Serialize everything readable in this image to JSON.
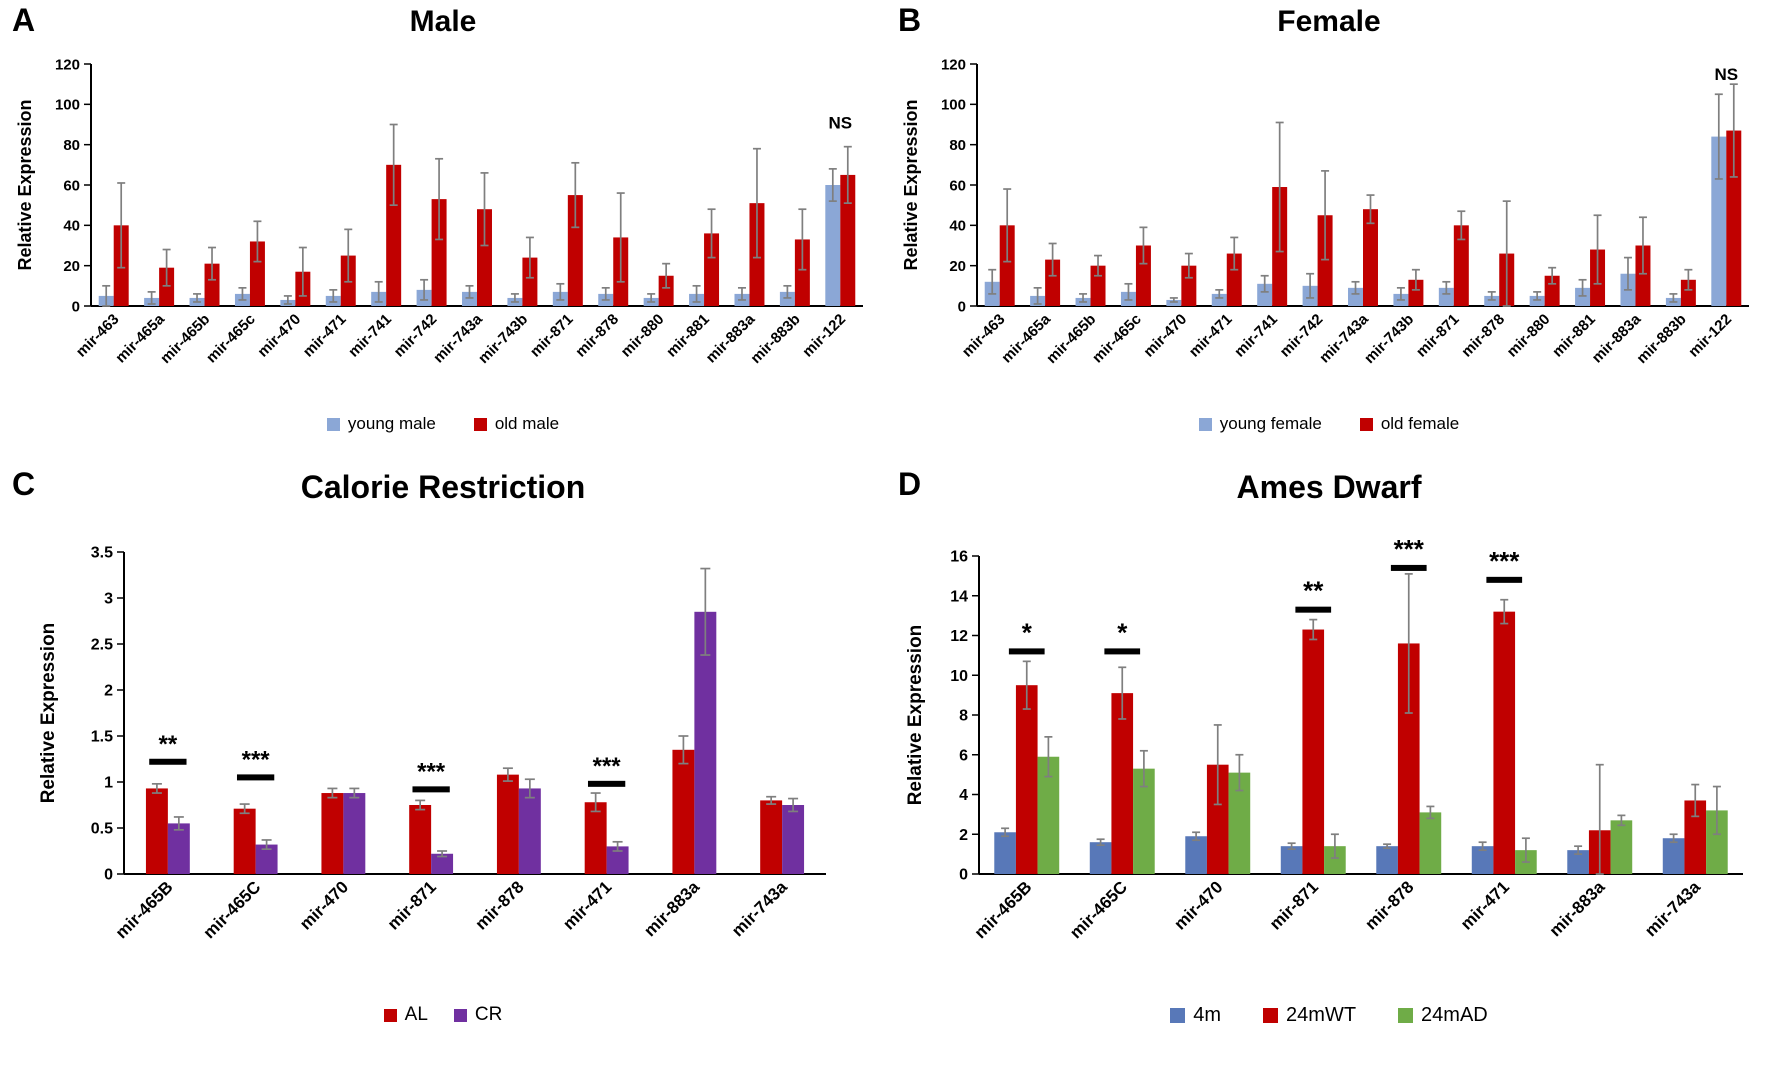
{
  "colors": {
    "error_bar": "#7F7F7F",
    "axis": "#000000",
    "annotation": "#000000",
    "young_blue": "#8BA7D6",
    "old_red": "#C00000",
    "cr_purple": "#7030A0",
    "fourm_blue": "#5878B8",
    "ad_green": "#6FAC47"
  },
  "chart_data": [
    {
      "type": "bar",
      "letter": "A",
      "title": "Male",
      "ylabel": "Relative Expression",
      "ylim": [
        0,
        120
      ],
      "yticks": [
        0,
        20,
        40,
        60,
        80,
        100,
        120
      ],
      "legend_position": "bottom",
      "grid": false,
      "categories": [
        "mir-463",
        "mir-465a",
        "mir-465b",
        "mir-465c",
        "mir-470",
        "mir-471",
        "mir-741",
        "mir-742",
        "mir-743a",
        "mir-743b",
        "mir-871",
        "mir-878",
        "mir-880",
        "mir-881",
        "mir-883a",
        "mir-883b",
        "mir-122"
      ],
      "series": [
        {
          "name": "young male",
          "color": "#8BA7D6",
          "values": [
            5,
            4,
            4,
            6,
            3,
            5,
            7,
            8,
            7,
            4,
            7,
            6,
            4,
            6,
            6,
            7,
            60
          ],
          "errors": [
            5,
            3,
            2,
            3,
            2,
            3,
            5,
            5,
            3,
            2,
            4,
            3,
            2,
            4,
            3,
            3,
            8
          ]
        },
        {
          "name": "old male",
          "color": "#C00000",
          "values": [
            40,
            19,
            21,
            32,
            17,
            25,
            70,
            53,
            48,
            24,
            55,
            34,
            15,
            36,
            51,
            33,
            65
          ],
          "errors": [
            21,
            9,
            8,
            10,
            12,
            13,
            20,
            20,
            18,
            10,
            16,
            22,
            6,
            12,
            27,
            15,
            14
          ]
        }
      ],
      "annotations": [
        {
          "category": "mir-122",
          "text": "NS",
          "y": 88,
          "bracket": false
        }
      ]
    },
    {
      "type": "bar",
      "letter": "B",
      "title": "Female",
      "ylabel": "Relative Expression",
      "ylim": [
        0,
        120
      ],
      "yticks": [
        0,
        20,
        40,
        60,
        80,
        100,
        120
      ],
      "legend_position": "bottom",
      "grid": false,
      "categories": [
        "mir-463",
        "mir-465a",
        "mir-465b",
        "mir-465c",
        "mir-470",
        "mir-471",
        "mir-741",
        "mir-742",
        "mir-743a",
        "mir-743b",
        "mir-871",
        "mir-878",
        "mir-880",
        "mir-881",
        "mir-883a",
        "mir-883b",
        "mir-122"
      ],
      "series": [
        {
          "name": "young female",
          "color": "#8BA7D6",
          "values": [
            12,
            5,
            4,
            7,
            3,
            6,
            11,
            10,
            9,
            6,
            9,
            5,
            5,
            9,
            16,
            4,
            84
          ],
          "errors": [
            6,
            4,
            2,
            4,
            1,
            2,
            4,
            6,
            3,
            3,
            3,
            2,
            2,
            4,
            8,
            2,
            21
          ]
        },
        {
          "name": "old female",
          "color": "#C00000",
          "values": [
            40,
            23,
            20,
            30,
            20,
            26,
            59,
            45,
            48,
            13,
            40,
            26,
            15,
            28,
            30,
            13,
            87
          ],
          "errors": [
            18,
            8,
            5,
            9,
            6,
            8,
            32,
            22,
            7,
            5,
            7,
            26,
            4,
            17,
            14,
            5,
            23
          ]
        }
      ],
      "annotations": [
        {
          "category": "mir-122",
          "text": "NS",
          "y": 112,
          "bracket": false
        }
      ]
    },
    {
      "type": "bar",
      "letter": "C",
      "title": "Calorie Restriction",
      "ylabel": "Relative Expression",
      "ylim": [
        0,
        3.5
      ],
      "yticks": [
        0,
        0.5,
        1,
        1.5,
        2,
        2.5,
        3,
        3.5
      ],
      "ytick_labels": [
        "0",
        "0.5",
        "1",
        "1.5",
        "2",
        "2.5",
        "3",
        "3.5"
      ],
      "legend_position": "bottom",
      "grid": false,
      "categories": [
        "mir-465B",
        "mir-465C",
        "mir-470",
        "mir-871",
        "mir-878",
        "mir-471",
        "mir-883a",
        "mir-743a"
      ],
      "series": [
        {
          "name": "AL",
          "color": "#C00000",
          "values": [
            0.93,
            0.71,
            0.88,
            0.75,
            1.08,
            0.78,
            1.35,
            0.8
          ],
          "errors": [
            0.05,
            0.05,
            0.05,
            0.05,
            0.07,
            0.1,
            0.15,
            0.04
          ]
        },
        {
          "name": "CR",
          "color": "#7030A0",
          "values": [
            0.55,
            0.32,
            0.88,
            0.22,
            0.93,
            0.3,
            2.85,
            0.75
          ],
          "errors": [
            0.07,
            0.05,
            0.05,
            0.03,
            0.1,
            0.05,
            0.47,
            0.07
          ]
        }
      ],
      "annotations": [
        {
          "category": "mir-465B",
          "text": "**",
          "y": 1.22,
          "bracket": true
        },
        {
          "category": "mir-465C",
          "text": "***",
          "y": 1.05,
          "bracket": true
        },
        {
          "category": "mir-871",
          "text": "***",
          "y": 0.92,
          "bracket": true
        },
        {
          "category": "mir-471",
          "text": "***",
          "y": 0.98,
          "bracket": true
        }
      ]
    },
    {
      "type": "bar",
      "letter": "D",
      "title": "Ames Dwarf",
      "ylabel": "Relative Expression",
      "ylim": [
        0,
        16
      ],
      "yticks": [
        0,
        2,
        4,
        6,
        8,
        10,
        12,
        14,
        16
      ],
      "legend_position": "bottom",
      "grid": false,
      "categories": [
        "mir-465B",
        "mir-465C",
        "mir-470",
        "mir-871",
        "mir-878",
        "mir-471",
        "mir-883a",
        "mir-743a"
      ],
      "series": [
        {
          "name": "4m",
          "color": "#5878B8",
          "values": [
            2.1,
            1.6,
            1.9,
            1.4,
            1.4,
            1.4,
            1.2,
            1.8
          ],
          "errors": [
            0.2,
            0.15,
            0.2,
            0.15,
            0.1,
            0.2,
            0.2,
            0.2
          ]
        },
        {
          "name": "24mWT",
          "color": "#C00000",
          "values": [
            9.5,
            9.1,
            5.5,
            12.3,
            11.6,
            13.2,
            2.2,
            3.7
          ],
          "errors": [
            1.2,
            1.3,
            2.0,
            0.5,
            3.5,
            0.6,
            3.3,
            0.8
          ]
        },
        {
          "name": "24mAD",
          "color": "#6FAC47",
          "values": [
            5.9,
            5.3,
            5.1,
            1.4,
            3.1,
            1.2,
            2.7,
            3.2
          ],
          "errors": [
            1.0,
            0.9,
            0.9,
            0.6,
            0.3,
            0.6,
            0.25,
            1.2
          ]
        }
      ],
      "annotations": [
        {
          "category": "mir-465B",
          "text": "*",
          "y": 11.2,
          "bracket": true
        },
        {
          "category": "mir-465C",
          "text": "*",
          "y": 11.2,
          "bracket": true
        },
        {
          "category": "mir-871",
          "text": "**",
          "y": 13.3,
          "bracket": true
        },
        {
          "category": "mir-878",
          "text": "***",
          "y": 15.4,
          "bracket": true
        },
        {
          "category": "mir-471",
          "text": "***",
          "y": 14.8,
          "bracket": true
        }
      ]
    }
  ]
}
